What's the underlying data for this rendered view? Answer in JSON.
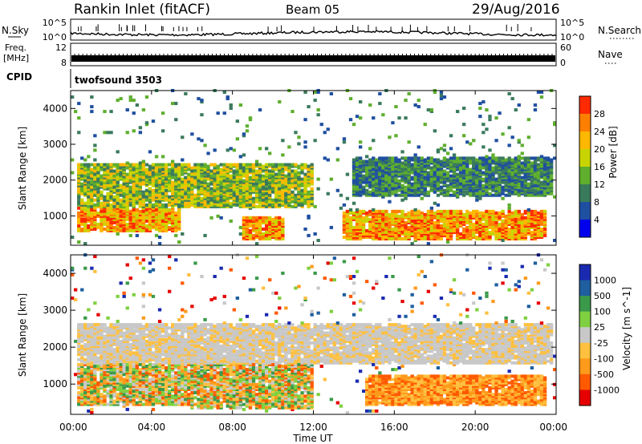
{
  "header": {
    "station": "Rankin Inlet (fitACF)",
    "beam": "Beam 05",
    "date": "29/Aug/2016"
  },
  "top_panels": {
    "nsky_label": "N.Sky",
    "nsky_ticks": [
      "10^5",
      "10^0"
    ],
    "nsearch_label": "N.Search",
    "nsearch_ticks": [
      "10^5",
      "10^0"
    ],
    "freq_label_1": "Freq.",
    "freq_label_2": "[MHz]",
    "freq_ticks": [
      "12",
      "8"
    ],
    "nave_label": "Nave",
    "nave_ticks": [
      "60",
      "0"
    ],
    "cpid_label": "CPID",
    "cpid_value": "twofsound 3503"
  },
  "x_axis": {
    "ticks": [
      "00:00",
      "04:00",
      "08:00",
      "12:00",
      "16:00",
      "20:00",
      "00:00"
    ],
    "label": "Time UT"
  },
  "colors": {
    "power": [
      "#0000ee",
      "#1f4fa0",
      "#3a7a5c",
      "#5fae2e",
      "#c8d400",
      "#ffb800",
      "#ff7f00",
      "#ff2a00"
    ],
    "velocity": [
      "#e60000",
      "#ff5a00",
      "#ff9a1a",
      "#ffc040",
      "#c8c8c8",
      "#7fd040",
      "#3a9a4a",
      "#1f5fa0",
      "#1a2ab0"
    ]
  },
  "chart_data": [
    {
      "type": "heatmap",
      "title": "Power",
      "ylabel": "Slant Range [km]",
      "xlabel": "",
      "x_range": [
        "00:00",
        "24:00"
      ],
      "ylim": [
        180,
        4500
      ],
      "y_ticks": [
        "4000",
        "3000",
        "2000",
        "1000"
      ],
      "colorbar": {
        "label": "Power [dB]",
        "ticks": [
          "28",
          "24",
          "20",
          "16",
          "12",
          "8",
          "4"
        ],
        "range": [
          0,
          30
        ]
      },
      "regions": [
        {
          "time_range": [
            0.3,
            5.5
          ],
          "range_km": [
            500,
            1200
          ],
          "level": "high"
        },
        {
          "time_range": [
            8.5,
            10.5
          ],
          "range_km": [
            300,
            900
          ],
          "level": "high"
        },
        {
          "time_range": [
            13.5,
            23.5
          ],
          "range_km": [
            300,
            1100
          ],
          "level": "high"
        },
        {
          "time_range": [
            0.3,
            12.0
          ],
          "range_km": [
            1200,
            2400
          ],
          "level": "medium"
        },
        {
          "time_range": [
            14.0,
            23.8
          ],
          "range_km": [
            1500,
            2600
          ],
          "level": "low"
        }
      ]
    },
    {
      "type": "heatmap",
      "title": "Velocity",
      "ylabel": "Slant Range [km]",
      "xlabel": "Time UT",
      "x_range": [
        "00:00",
        "24:00"
      ],
      "ylim": [
        180,
        4500
      ],
      "y_ticks": [
        "4000",
        "3000",
        "2000",
        "1000"
      ],
      "colorbar": {
        "label": "Velocity [m s^-1]",
        "ticks": [
          "1000",
          "500",
          "100",
          "25",
          "-25",
          "-100",
          "-500",
          "-1000"
        ],
        "range": [
          -1000,
          1000
        ]
      },
      "regions": [
        {
          "time_range": [
            0.3,
            6.0
          ],
          "range_km": [
            400,
            2000
          ],
          "level": "mixed"
        },
        {
          "time_range": [
            6.0,
            12.0
          ],
          "range_km": [
            300,
            1500
          ],
          "level": "mixed"
        },
        {
          "time_range": [
            14.5,
            23.5
          ],
          "range_km": [
            400,
            1200
          ],
          "level": "negative"
        },
        {
          "time_range": [
            0.3,
            23.8
          ],
          "range_km": [
            1500,
            2600
          ],
          "level": "near-zero"
        }
      ]
    }
  ]
}
